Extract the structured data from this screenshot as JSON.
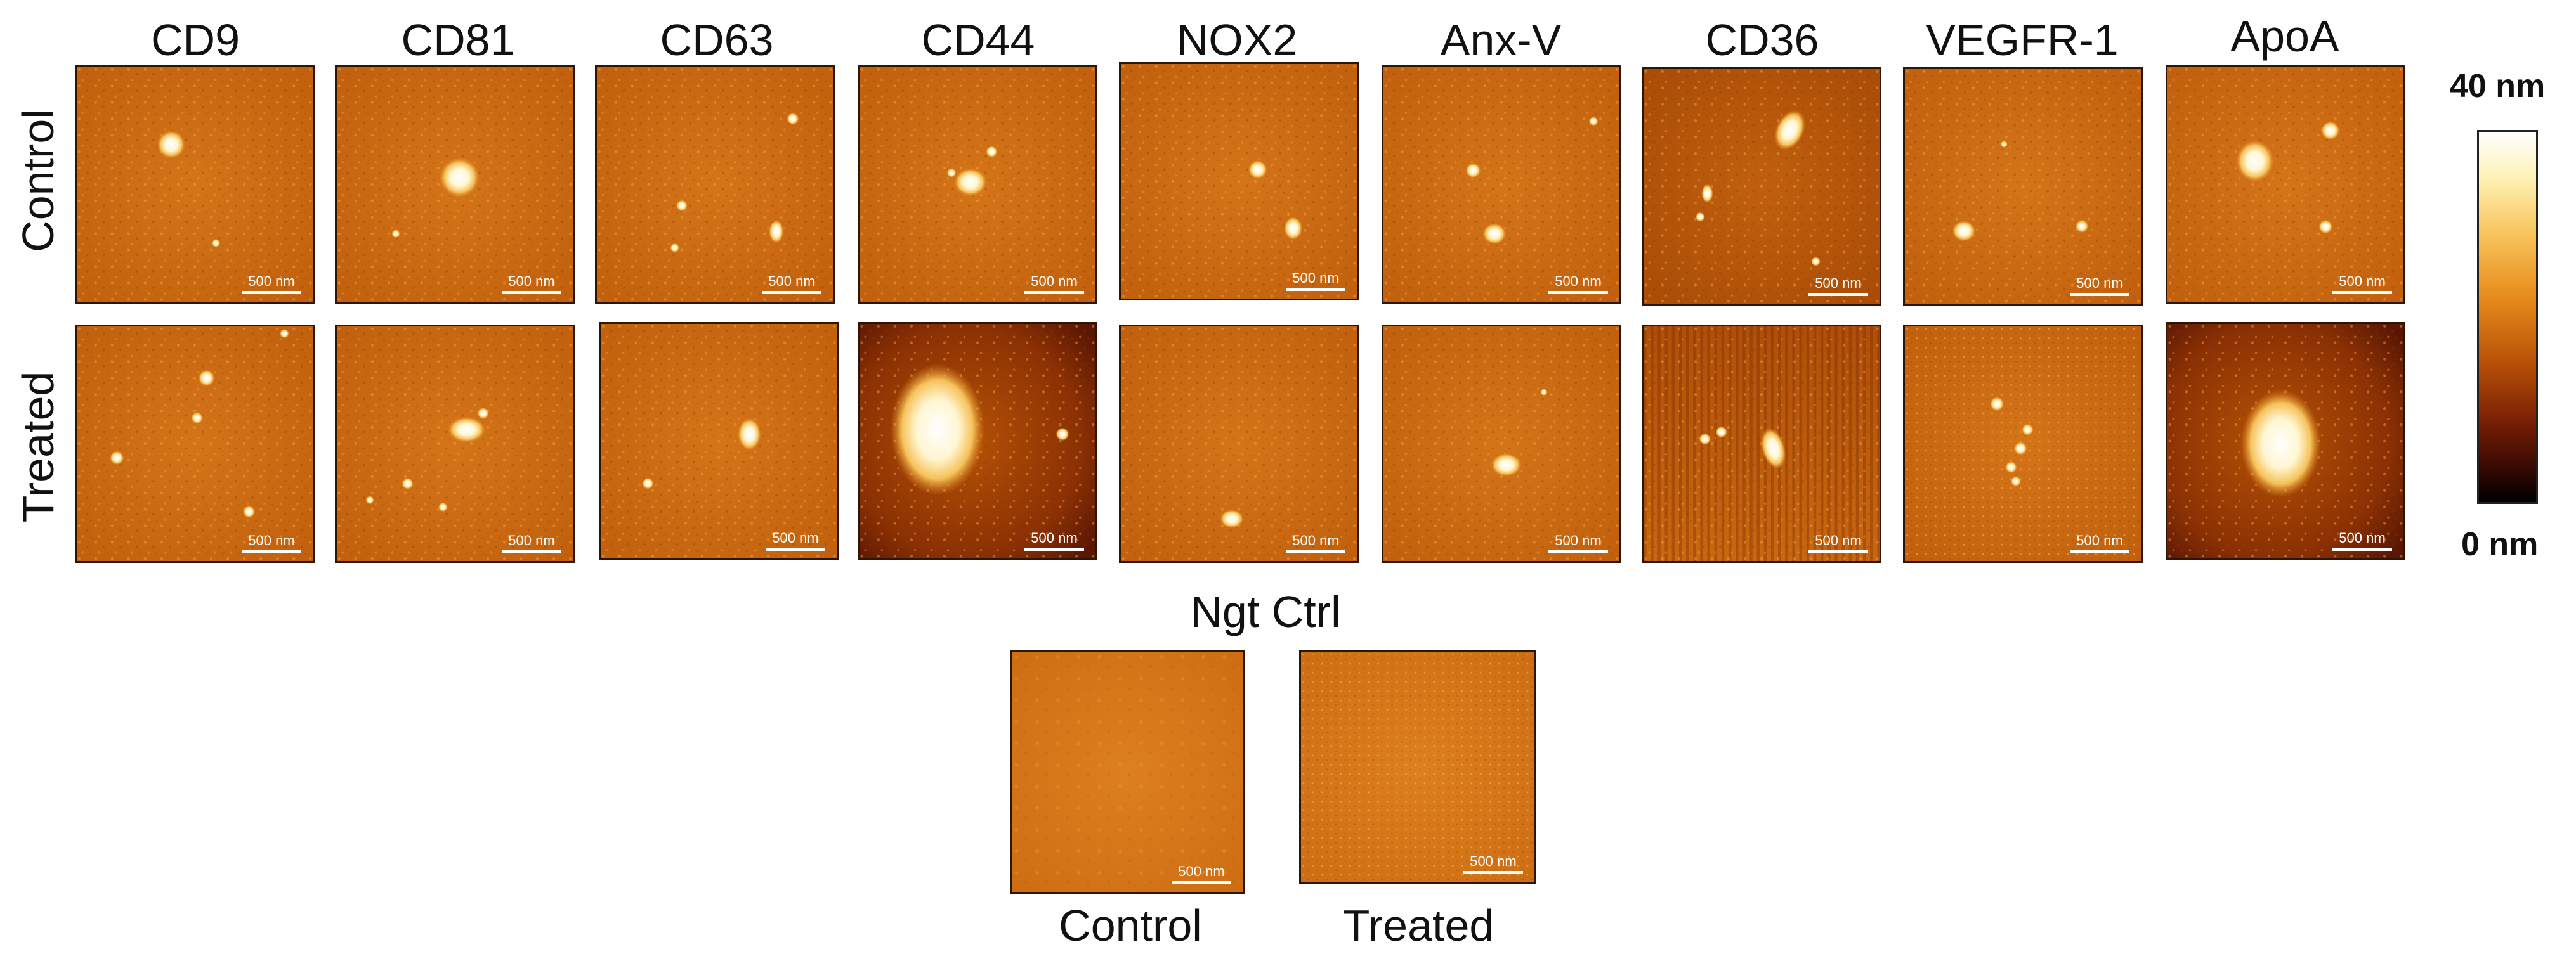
{
  "figure": {
    "columns": [
      "CD9",
      "CD81",
      "CD63",
      "CD44",
      "NOX2",
      "Anx-V",
      "CD36",
      "VEGFR-1",
      "ApoA"
    ],
    "rows": [
      "Control",
      "Treated"
    ],
    "scale_bar": "500 nm",
    "colors": {
      "background": "#cc6a12",
      "highlight": "#fffbe8",
      "dark": "#3a0a02"
    },
    "negative_control": {
      "title": "Ngt Ctrl",
      "panels": [
        "Control",
        "Treated"
      ]
    },
    "colorbar": {
      "max_label": "40 nm",
      "min_label": "0 nm"
    }
  }
}
